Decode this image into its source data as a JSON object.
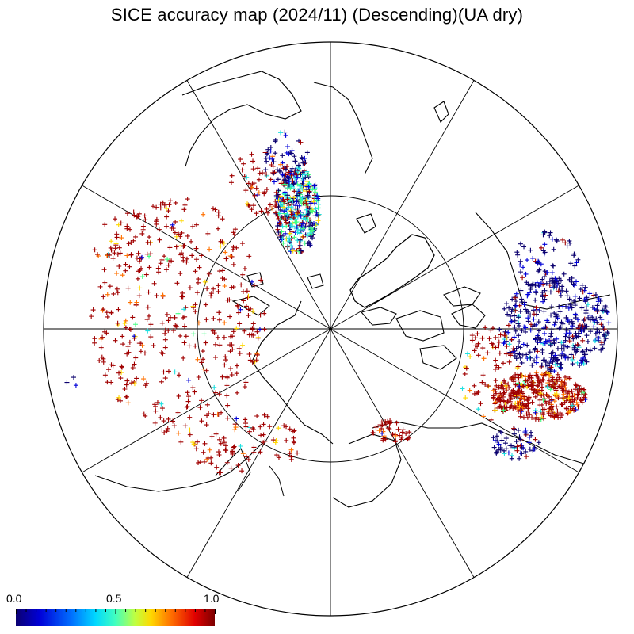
{
  "title": "SICE accuracy map (2024/11) (Descending)(UA dry)",
  "colorbar": {
    "min_label": "0.0",
    "mid_label": "0.5",
    "max_label": "1.0",
    "colormap": "jet (dark blue to dark red)"
  },
  "map": {
    "projection": "north polar stereographic",
    "meridian_lines": 12,
    "latitude_circles": 1,
    "marker": "+",
    "colors": {
      "low": "#0b006e",
      "blue": "#0000d8",
      "cyan": "#20e0e0",
      "green": "#40ff80",
      "yellow": "#ffd800",
      "orange": "#ff7000",
      "high": "#a00000",
      "coastline": "#000000"
    }
  }
}
